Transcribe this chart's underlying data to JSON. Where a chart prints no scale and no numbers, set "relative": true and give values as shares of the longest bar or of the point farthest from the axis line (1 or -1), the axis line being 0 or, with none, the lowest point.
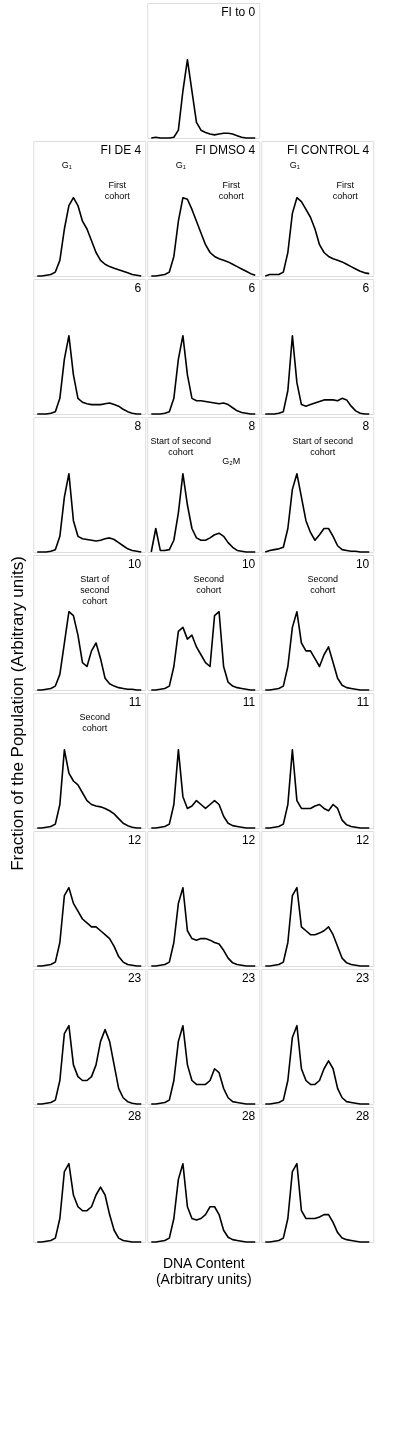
{
  "chart_data": [
    {
      "type": "line",
      "relative": true,
      "tick_labels": false,
      "title": "FI to 0",
      "categories": [
        null,
        null,
        null,
        null,
        null,
        null,
        null,
        null,
        null,
        null,
        null,
        null,
        null,
        null,
        null,
        null,
        null,
        null,
        null,
        null,
        null,
        null,
        null,
        null
      ],
      "color": "#000000",
      "values": [
        0,
        0.01,
        0,
        0,
        0,
        0.01,
        0.1,
        0.6,
        1,
        0.6,
        0.2,
        0.1,
        0.07,
        0.05,
        0.04,
        0.05,
        0.06,
        0.06,
        0.05,
        0.03,
        0.01,
        0,
        0,
        0
      ]
    },
    {
      "type": "line",
      "relative": true,
      "tick_labels": false,
      "title": "FI DE 4",
      "annotations": [
        "G₁",
        "First\ncohort"
      ],
      "categories": [
        null,
        null,
        null,
        null,
        null,
        null,
        null,
        null,
        null,
        null,
        null,
        null,
        null,
        null,
        null,
        null,
        null,
        null,
        null,
        null,
        null,
        null,
        null,
        null
      ],
      "color": "#000000",
      "values": [
        0,
        0,
        0.01,
        0.02,
        0.05,
        0.2,
        0.6,
        0.9,
        1,
        0.9,
        0.7,
        0.6,
        0.45,
        0.3,
        0.2,
        0.15,
        0.12,
        0.1,
        0.08,
        0.06,
        0.04,
        0.02,
        0.01,
        0
      ]
    },
    {
      "type": "line",
      "relative": true,
      "tick_labels": false,
      "title": "FI DMSO 4",
      "annotations": [
        "G₁",
        "First\ncohort"
      ],
      "categories": [
        null,
        null,
        null,
        null,
        null,
        null,
        null,
        null,
        null,
        null,
        null,
        null,
        null,
        null,
        null,
        null,
        null,
        null,
        null,
        null,
        null,
        null,
        null,
        null
      ],
      "color": "#000000",
      "values": [
        0,
        0,
        0.01,
        0.02,
        0.05,
        0.25,
        0.7,
        1,
        0.98,
        0.85,
        0.7,
        0.55,
        0.4,
        0.3,
        0.25,
        0.22,
        0.2,
        0.18,
        0.15,
        0.12,
        0.09,
        0.06,
        0.03,
        0.01
      ]
    },
    {
      "type": "line",
      "relative": true,
      "tick_labels": false,
      "title": "FI CONTROL 4",
      "annotations": [
        "G₁",
        "First\ncohort"
      ],
      "categories": [
        null,
        null,
        null,
        null,
        null,
        null,
        null,
        null,
        null,
        null,
        null,
        null,
        null,
        null,
        null,
        null,
        null,
        null,
        null,
        null,
        null,
        null,
        null,
        null
      ],
      "color": "#000000",
      "values": [
        0,
        0.02,
        0.02,
        0.02,
        0.05,
        0.3,
        0.8,
        1,
        0.95,
        0.85,
        0.75,
        0.6,
        0.4,
        0.3,
        0.25,
        0.22,
        0.2,
        0.18,
        0.15,
        0.12,
        0.09,
        0.06,
        0.04,
        0.03
      ]
    },
    {
      "type": "line",
      "relative": true,
      "tick_labels": false,
      "title": "6",
      "categories": [
        null,
        null,
        null,
        null,
        null,
        null,
        null,
        null,
        null,
        null,
        null,
        null,
        null,
        null,
        null,
        null,
        null,
        null,
        null,
        null,
        null,
        null,
        null,
        null
      ],
      "color": "#000000",
      "values": [
        0,
        0,
        0,
        0.01,
        0.03,
        0.2,
        0.7,
        1,
        0.5,
        0.2,
        0.15,
        0.13,
        0.12,
        0.12,
        0.12,
        0.13,
        0.14,
        0.12,
        0.1,
        0.06,
        0.03,
        0.01,
        0,
        0
      ]
    },
    {
      "type": "line",
      "relative": true,
      "tick_labels": false,
      "title": "6",
      "categories": [
        null,
        null,
        null,
        null,
        null,
        null,
        null,
        null,
        null,
        null,
        null,
        null,
        null,
        null,
        null,
        null,
        null,
        null,
        null,
        null,
        null,
        null,
        null,
        null
      ],
      "color": "#000000",
      "values": [
        0,
        0,
        0,
        0.01,
        0.03,
        0.2,
        0.7,
        1,
        0.5,
        0.2,
        0.17,
        0.17,
        0.16,
        0.15,
        0.14,
        0.13,
        0.14,
        0.12,
        0.08,
        0.04,
        0.02,
        0.01,
        0,
        0
      ]
    },
    {
      "type": "line",
      "relative": true,
      "tick_labels": false,
      "title": "6",
      "categories": [
        null,
        null,
        null,
        null,
        null,
        null,
        null,
        null,
        null,
        null,
        null,
        null,
        null,
        null,
        null,
        null,
        null,
        null,
        null,
        null,
        null,
        null,
        null,
        null
      ],
      "color": "#000000",
      "values": [
        0,
        0,
        0,
        0.01,
        0.03,
        0.3,
        1,
        0.4,
        0.12,
        0.1,
        0.12,
        0.14,
        0.16,
        0.18,
        0.18,
        0.18,
        0.17,
        0.2,
        0.18,
        0.1,
        0.04,
        0.01,
        0,
        0
      ]
    },
    {
      "type": "line",
      "relative": true,
      "tick_labels": false,
      "title": "8",
      "categories": [
        null,
        null,
        null,
        null,
        null,
        null,
        null,
        null,
        null,
        null,
        null,
        null,
        null,
        null,
        null,
        null,
        null,
        null,
        null,
        null,
        null,
        null,
        null,
        null
      ],
      "color": "#000000",
      "values": [
        0,
        0,
        0,
        0.01,
        0.03,
        0.2,
        0.7,
        1,
        0.4,
        0.2,
        0.17,
        0.16,
        0.15,
        0.14,
        0.15,
        0.17,
        0.18,
        0.16,
        0.12,
        0.08,
        0.04,
        0.02,
        0.01,
        0
      ]
    },
    {
      "type": "line",
      "relative": true,
      "tick_labels": false,
      "title": "8",
      "annotations": [
        "Start of second\ncohort",
        "G₂M"
      ],
      "categories": [
        null,
        null,
        null,
        null,
        null,
        null,
        null,
        null,
        null,
        null,
        null,
        null,
        null,
        null,
        null,
        null,
        null,
        null,
        null,
        null,
        null,
        null,
        null,
        null
      ],
      "color": "#000000",
      "values": [
        0,
        0.3,
        0.02,
        0.02,
        0.03,
        0.15,
        0.5,
        1,
        0.6,
        0.3,
        0.18,
        0.15,
        0.15,
        0.18,
        0.22,
        0.24,
        0.2,
        0.12,
        0.06,
        0.02,
        0.01,
        0,
        0,
        0
      ]
    },
    {
      "type": "line",
      "relative": true,
      "tick_labels": false,
      "title": "8",
      "annotations": [
        "Start of second\ncohort"
      ],
      "categories": [
        null,
        null,
        null,
        null,
        null,
        null,
        null,
        null,
        null,
        null,
        null,
        null,
        null,
        null,
        null,
        null,
        null,
        null,
        null,
        null,
        null,
        null,
        null,
        null
      ],
      "color": "#000000",
      "values": [
        0,
        0.02,
        0.03,
        0.04,
        0.06,
        0.3,
        0.8,
        1,
        0.7,
        0.4,
        0.25,
        0.15,
        0.22,
        0.3,
        0.3,
        0.2,
        0.08,
        0.03,
        0.02,
        0.01,
        0.01,
        0,
        0,
        0
      ]
    },
    {
      "type": "line",
      "relative": true,
      "tick_labels": false,
      "title": "10",
      "ylabel": "Fraction of the Population (Arbitrary units)",
      "annotations": [
        "Start of\nsecond\ncohort"
      ],
      "categories": [
        null,
        null,
        null,
        null,
        null,
        null,
        null,
        null,
        null,
        null,
        null,
        null,
        null,
        null,
        null,
        null,
        null,
        null,
        null,
        null,
        null,
        null,
        null,
        null
      ],
      "color": "#000000",
      "values": [
        0,
        0,
        0.01,
        0.02,
        0.05,
        0.2,
        0.6,
        1,
        0.95,
        0.7,
        0.35,
        0.3,
        0.5,
        0.6,
        0.4,
        0.15,
        0.08,
        0.05,
        0.03,
        0.02,
        0.01,
        0.01,
        0,
        0
      ]
    },
    {
      "type": "line",
      "relative": true,
      "tick_labels": false,
      "title": "10",
      "annotations": [
        "Second\ncohort"
      ],
      "categories": [
        null,
        null,
        null,
        null,
        null,
        null,
        null,
        null,
        null,
        null,
        null,
        null,
        null,
        null,
        null,
        null,
        null,
        null,
        null,
        null,
        null,
        null,
        null,
        null
      ],
      "color": "#000000",
      "values": [
        0,
        0,
        0.01,
        0.02,
        0.05,
        0.3,
        0.75,
        0.8,
        0.65,
        0.7,
        0.55,
        0.45,
        0.35,
        0.3,
        0.95,
        1,
        0.3,
        0.1,
        0.05,
        0.03,
        0.02,
        0.01,
        0,
        0
      ]
    },
    {
      "type": "line",
      "relative": true,
      "tick_labels": false,
      "title": "10",
      "annotations": [
        "Second\ncohort"
      ],
      "categories": [
        null,
        null,
        null,
        null,
        null,
        null,
        null,
        null,
        null,
        null,
        null,
        null,
        null,
        null,
        null,
        null,
        null,
        null,
        null,
        null,
        null,
        null,
        null,
        null
      ],
      "color": "#000000",
      "values": [
        0,
        0,
        0.01,
        0.02,
        0.05,
        0.3,
        0.8,
        1,
        0.6,
        0.5,
        0.5,
        0.4,
        0.3,
        0.45,
        0.55,
        0.35,
        0.15,
        0.06,
        0.03,
        0.02,
        0.01,
        0,
        0,
        0
      ]
    },
    {
      "type": "line",
      "relative": true,
      "tick_labels": false,
      "title": "11",
      "annotations": [
        "Second\ncohort"
      ],
      "categories": [
        null,
        null,
        null,
        null,
        null,
        null,
        null,
        null,
        null,
        null,
        null,
        null,
        null,
        null,
        null,
        null,
        null,
        null,
        null,
        null,
        null,
        null,
        null,
        null
      ],
      "color": "#000000",
      "values": [
        0,
        0,
        0.01,
        0.02,
        0.05,
        0.3,
        1,
        0.7,
        0.6,
        0.55,
        0.45,
        0.35,
        0.3,
        0.28,
        0.27,
        0.25,
        0.22,
        0.18,
        0.12,
        0.06,
        0.03,
        0.01,
        0,
        0
      ]
    },
    {
      "type": "line",
      "relative": true,
      "tick_labels": false,
      "title": "11",
      "categories": [
        null,
        null,
        null,
        null,
        null,
        null,
        null,
        null,
        null,
        null,
        null,
        null,
        null,
        null,
        null,
        null,
        null,
        null,
        null,
        null,
        null,
        null,
        null,
        null
      ],
      "color": "#000000",
      "values": [
        0,
        0,
        0.01,
        0.02,
        0.05,
        0.3,
        1,
        0.4,
        0.25,
        0.28,
        0.35,
        0.3,
        0.25,
        0.3,
        0.35,
        0.3,
        0.15,
        0.06,
        0.03,
        0.02,
        0.01,
        0,
        0,
        0
      ]
    },
    {
      "type": "line",
      "relative": true,
      "tick_labels": false,
      "title": "11",
      "categories": [
        null,
        null,
        null,
        null,
        null,
        null,
        null,
        null,
        null,
        null,
        null,
        null,
        null,
        null,
        null,
        null,
        null,
        null,
        null,
        null,
        null,
        null,
        null,
        null
      ],
      "color": "#000000",
      "values": [
        0,
        0,
        0.01,
        0.02,
        0.05,
        0.3,
        1,
        0.35,
        0.25,
        0.25,
        0.25,
        0.28,
        0.3,
        0.25,
        0.22,
        0.3,
        0.25,
        0.1,
        0.04,
        0.02,
        0.01,
        0,
        0,
        0
      ]
    },
    {
      "type": "line",
      "relative": true,
      "tick_labels": false,
      "title": "12",
      "categories": [
        null,
        null,
        null,
        null,
        null,
        null,
        null,
        null,
        null,
        null,
        null,
        null,
        null,
        null,
        null,
        null,
        null,
        null,
        null,
        null,
        null,
        null,
        null,
        null
      ],
      "color": "#000000",
      "values": [
        0,
        0,
        0.01,
        0.02,
        0.05,
        0.3,
        0.9,
        1,
        0.8,
        0.7,
        0.6,
        0.55,
        0.5,
        0.5,
        0.45,
        0.4,
        0.35,
        0.25,
        0.12,
        0.05,
        0.02,
        0.01,
        0,
        0
      ]
    },
    {
      "type": "line",
      "relative": true,
      "tick_labels": false,
      "title": "12",
      "categories": [
        null,
        null,
        null,
        null,
        null,
        null,
        null,
        null,
        null,
        null,
        null,
        null,
        null,
        null,
        null,
        null,
        null,
        null,
        null,
        null,
        null,
        null,
        null,
        null
      ],
      "color": "#000000",
      "values": [
        0,
        0,
        0.01,
        0.02,
        0.05,
        0.3,
        0.8,
        1,
        0.45,
        0.35,
        0.33,
        0.35,
        0.35,
        0.33,
        0.3,
        0.28,
        0.2,
        0.1,
        0.04,
        0.02,
        0.01,
        0,
        0,
        0
      ]
    },
    {
      "type": "line",
      "relative": true,
      "tick_labels": false,
      "title": "12",
      "categories": [
        null,
        null,
        null,
        null,
        null,
        null,
        null,
        null,
        null,
        null,
        null,
        null,
        null,
        null,
        null,
        null,
        null,
        null,
        null,
        null,
        null,
        null,
        null,
        null
      ],
      "color": "#000000",
      "values": [
        0,
        0,
        0.01,
        0.02,
        0.05,
        0.3,
        0.9,
        1,
        0.5,
        0.45,
        0.4,
        0.4,
        0.42,
        0.45,
        0.5,
        0.4,
        0.25,
        0.1,
        0.04,
        0.02,
        0.01,
        0,
        0,
        0
      ]
    },
    {
      "type": "line",
      "relative": true,
      "tick_labels": false,
      "title": "23",
      "categories": [
        null,
        null,
        null,
        null,
        null,
        null,
        null,
        null,
        null,
        null,
        null,
        null,
        null,
        null,
        null,
        null,
        null,
        null,
        null,
        null,
        null,
        null,
        null,
        null
      ],
      "color": "#000000",
      "values": [
        0,
        0,
        0.01,
        0.02,
        0.05,
        0.3,
        0.9,
        1,
        0.5,
        0.35,
        0.3,
        0.3,
        0.35,
        0.5,
        0.8,
        0.95,
        0.8,
        0.5,
        0.2,
        0.08,
        0.03,
        0.01,
        0,
        0
      ]
    },
    {
      "type": "line",
      "relative": true,
      "tick_labels": false,
      "title": "23",
      "categories": [
        null,
        null,
        null,
        null,
        null,
        null,
        null,
        null,
        null,
        null,
        null,
        null,
        null,
        null,
        null,
        null,
        null,
        null,
        null,
        null,
        null,
        null,
        null,
        null
      ],
      "color": "#000000",
      "values": [
        0,
        0,
        0.01,
        0.02,
        0.05,
        0.3,
        0.8,
        1,
        0.5,
        0.3,
        0.25,
        0.25,
        0.25,
        0.3,
        0.45,
        0.4,
        0.2,
        0.08,
        0.03,
        0.02,
        0.01,
        0,
        0,
        0
      ]
    },
    {
      "type": "line",
      "relative": true,
      "tick_labels": false,
      "title": "23",
      "categories": [
        null,
        null,
        null,
        null,
        null,
        null,
        null,
        null,
        null,
        null,
        null,
        null,
        null,
        null,
        null,
        null,
        null,
        null,
        null,
        null,
        null,
        null,
        null,
        null
      ],
      "color": "#000000",
      "values": [
        0,
        0,
        0.01,
        0.02,
        0.05,
        0.3,
        0.85,
        1,
        0.45,
        0.3,
        0.25,
        0.25,
        0.3,
        0.45,
        0.55,
        0.45,
        0.2,
        0.08,
        0.03,
        0.02,
        0.01,
        0,
        0,
        0
      ]
    },
    {
      "type": "line",
      "relative": true,
      "tick_labels": false,
      "title": "28",
      "categories": [
        null,
        null,
        null,
        null,
        null,
        null,
        null,
        null,
        null,
        null,
        null,
        null,
        null,
        null,
        null,
        null,
        null,
        null,
        null,
        null,
        null,
        null,
        null,
        null
      ],
      "color": "#000000",
      "values": [
        0,
        0,
        0.01,
        0.02,
        0.05,
        0.3,
        0.9,
        1,
        0.6,
        0.45,
        0.4,
        0.4,
        0.45,
        0.6,
        0.7,
        0.6,
        0.35,
        0.15,
        0.05,
        0.02,
        0.01,
        0,
        0,
        0
      ]
    },
    {
      "type": "line",
      "relative": true,
      "tick_labels": false,
      "title": "28",
      "xlabel": "DNA Content\n(Arbitrary units)",
      "categories": [
        null,
        null,
        null,
        null,
        null,
        null,
        null,
        null,
        null,
        null,
        null,
        null,
        null,
        null,
        null,
        null,
        null,
        null,
        null,
        null,
        null,
        null,
        null,
        null
      ],
      "color": "#000000",
      "values": [
        0,
        0,
        0.01,
        0.02,
        0.05,
        0.3,
        0.8,
        1,
        0.45,
        0.3,
        0.28,
        0.3,
        0.35,
        0.45,
        0.45,
        0.35,
        0.15,
        0.06,
        0.03,
        0.02,
        0.01,
        0,
        0,
        0
      ]
    },
    {
      "type": "line",
      "relative": true,
      "tick_labels": false,
      "title": "28",
      "categories": [
        null,
        null,
        null,
        null,
        null,
        null,
        null,
        null,
        null,
        null,
        null,
        null,
        null,
        null,
        null,
        null,
        null,
        null,
        null,
        null,
        null,
        null,
        null,
        null
      ],
      "color": "#000000",
      "values": [
        0,
        0,
        0.01,
        0.02,
        0.05,
        0.3,
        0.9,
        1,
        0.4,
        0.3,
        0.3,
        0.3,
        0.32,
        0.35,
        0.35,
        0.25,
        0.12,
        0.05,
        0.03,
        0.02,
        0.01,
        0,
        0,
        0
      ]
    }
  ]
}
